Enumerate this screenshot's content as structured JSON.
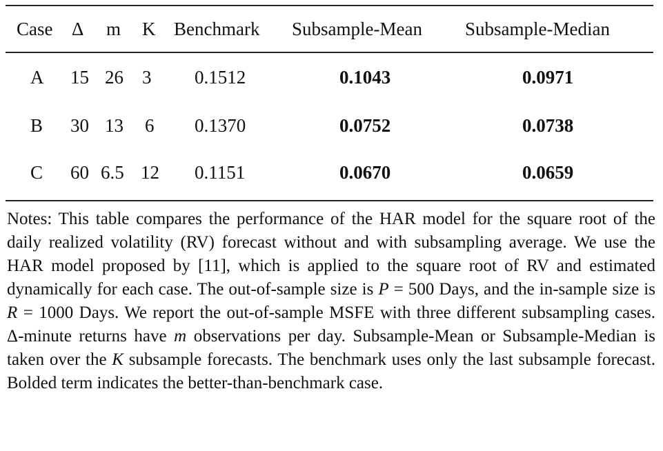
{
  "table": {
    "headers": [
      "Case",
      "Δ",
      "m",
      "K",
      "Benchmark",
      "Subsample-Mean",
      "Subsample-Median"
    ],
    "rows": [
      [
        "A",
        "15",
        "26",
        "3",
        "0.1512",
        "0.1043",
        "0.0971"
      ],
      [
        "B",
        "30",
        "13",
        "6",
        "0.1370",
        "0.0752",
        "0.0738"
      ],
      [
        "C",
        "60",
        "6.5",
        "12",
        "0.1151",
        "0.0670",
        "0.0659"
      ]
    ]
  },
  "notes": {
    "t1": "Notes: This table compares the performance of the HAR model for the square root of the daily realized volatility (RV) forecast without and with subsampling average. We use the HAR model proposed by [11], which is applied to the square root of RV and estimated dynamically for each case. The out-of-sample size is ",
    "p_var": "P",
    "t2": " = 500 Days, and the in-sample size is ",
    "r_var": "R",
    "t3": " = 1000 Days. We report the out-of-sample MSFE with three different subsampling cases. Δ-minute returns have ",
    "m_var": "m",
    "t4": " observations per day. Subsample-Mean or Subsample-Median is taken over the ",
    "k_var": "K",
    "t5": " subsample forecasts. The benchmark uses only the last subsample forecast. Bolded term indicates the better-than-benchmark case."
  }
}
